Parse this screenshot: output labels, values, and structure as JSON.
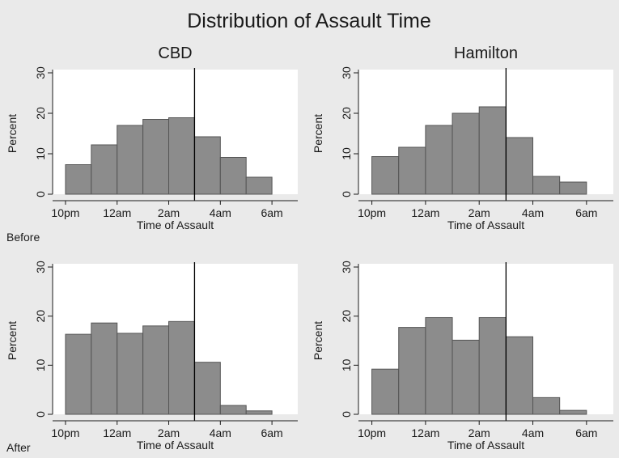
{
  "title": "Distribution of Assault Time",
  "colors": {
    "background": "#eaeaea",
    "plot_background": "#ffffff",
    "bar_fill": "#8c8c8c",
    "bar_stroke": "#555555",
    "axis": "#1a1a1a"
  },
  "chart_data": [
    {
      "type": "bar",
      "column_title": "CBD",
      "row_label": "Before",
      "xlabel": "Time of Assault",
      "ylabel": "Percent",
      "ylim": [
        0,
        30
      ],
      "yticks": [
        "0",
        "10",
        "20",
        "30"
      ],
      "xtick_labels": [
        "10pm",
        "12am",
        "2am",
        "4am",
        "6am"
      ],
      "xlim_hours": [
        21.5,
        31
      ],
      "bin_starts": [
        22,
        23,
        24,
        25,
        26,
        27,
        28,
        29
      ],
      "bin_width": 1,
      "values": [
        7.3,
        12.2,
        17.0,
        18.5,
        18.9,
        14.2,
        9.1,
        4.2
      ],
      "reference_line_hour": 27
    },
    {
      "type": "bar",
      "column_title": "Hamilton",
      "row_label": "",
      "xlabel": "Time of Assault",
      "ylabel": "Percent",
      "ylim": [
        0,
        30
      ],
      "yticks": [
        "0",
        "10",
        "20",
        "30"
      ],
      "xtick_labels": [
        "10pm",
        "12am",
        "2am",
        "4am",
        "6am"
      ],
      "xlim_hours": [
        21.5,
        31
      ],
      "bin_starts": [
        22,
        23,
        24,
        25,
        26,
        27,
        28,
        29
      ],
      "bin_width": 1,
      "values": [
        9.3,
        11.6,
        17.0,
        20.0,
        21.6,
        14.0,
        4.4,
        3.0
      ],
      "reference_line_hour": 27
    },
    {
      "type": "bar",
      "column_title": "",
      "row_label": "After",
      "xlabel": "Time of Assault",
      "ylabel": "Percent",
      "ylim": [
        0,
        30
      ],
      "yticks": [
        "0",
        "10",
        "20",
        "30"
      ],
      "xtick_labels": [
        "10pm",
        "12am",
        "2am",
        "4am",
        "6am"
      ],
      "xlim_hours": [
        21.5,
        31
      ],
      "bin_starts": [
        22,
        23,
        24,
        25,
        26,
        27,
        28,
        29
      ],
      "bin_width": 1,
      "values": [
        16.3,
        18.6,
        16.5,
        18.0,
        18.9,
        10.6,
        1.8,
        0.7
      ],
      "reference_line_hour": 27
    },
    {
      "type": "bar",
      "column_title": "",
      "row_label": "",
      "xlabel": "Time of Assault",
      "ylabel": "Percent",
      "ylim": [
        0,
        30
      ],
      "yticks": [
        "0",
        "10",
        "20",
        "30"
      ],
      "xtick_labels": [
        "10pm",
        "12am",
        "2am",
        "4am",
        "6am"
      ],
      "xlim_hours": [
        21.5,
        31
      ],
      "bin_starts": [
        22,
        23,
        24,
        25,
        26,
        27,
        28,
        29
      ],
      "bin_width": 1,
      "values": [
        9.2,
        17.7,
        19.7,
        15.1,
        19.7,
        15.8,
        3.4,
        0.8
      ],
      "reference_line_hour": 27
    }
  ]
}
